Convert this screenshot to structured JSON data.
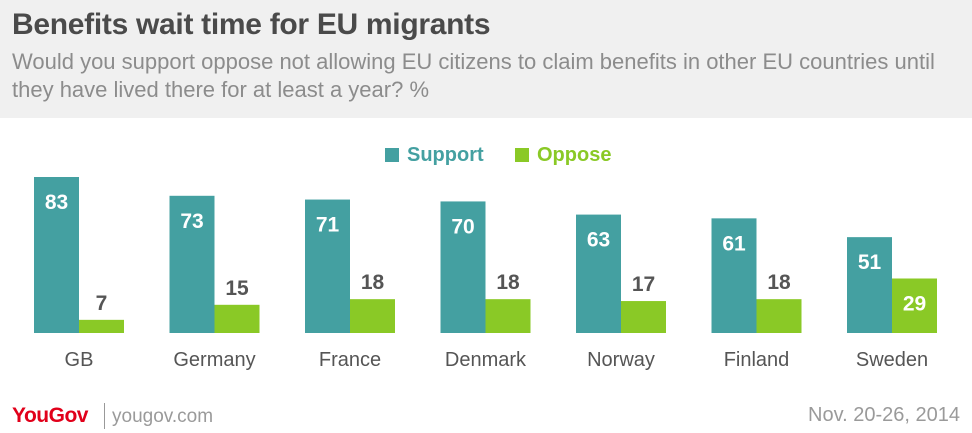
{
  "header": {
    "title": "Benefits wait time for EU migrants",
    "subtitle": "Would you support oppose not allowing EU citizens to claim benefits in other EU countries until they have lived there for at least a year? %"
  },
  "colors": {
    "support": "#44a0a1",
    "oppose": "#8ac926"
  },
  "chart_data": {
    "type": "bar",
    "categories": [
      "GB",
      "Germany",
      "France",
      "Denmark",
      "Norway",
      "Finland",
      "Sweden"
    ],
    "series": [
      {
        "name": "Support",
        "values": [
          83,
          73,
          71,
          70,
          63,
          61,
          51
        ]
      },
      {
        "name": "Oppose",
        "values": [
          7,
          15,
          18,
          18,
          17,
          18,
          29
        ]
      }
    ],
    "legend_position": "top-center",
    "grid": false,
    "ylim": [
      0,
      83
    ]
  },
  "footer": {
    "logo": "YouGov",
    "url": "yougov.com",
    "date": "Nov. 20-26, 2014"
  }
}
